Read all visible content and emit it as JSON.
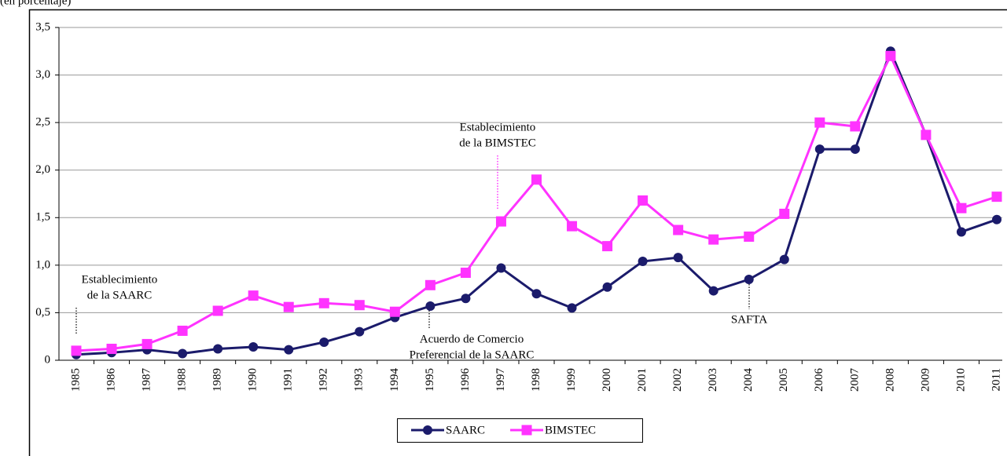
{
  "chart_data": {
    "type": "line",
    "subtitle": "(en porcentaje)",
    "categories": [
      "1985",
      "1986",
      "1987",
      "1988",
      "1989",
      "1990",
      "1991",
      "1992",
      "1993",
      "1994",
      "1995",
      "1996",
      "1997",
      "1998",
      "1999",
      "2000",
      "2001",
      "2002",
      "2003",
      "2004",
      "2005",
      "2006",
      "2007",
      "2008",
      "2009",
      "2010",
      "2011"
    ],
    "series": [
      {
        "name": "SAARC",
        "color": "#1b1b6b",
        "marker": "circle",
        "values": [
          0.06,
          0.08,
          0.11,
          0.07,
          0.12,
          0.14,
          0.11,
          0.19,
          0.3,
          0.45,
          0.57,
          0.65,
          0.97,
          0.7,
          0.55,
          0.77,
          1.04,
          1.08,
          0.73,
          0.85,
          1.06,
          2.22,
          2.22,
          3.25,
          2.37,
          1.35,
          1.48
        ]
      },
      {
        "name": "BIMSTEC",
        "color": "#ff33ff",
        "marker": "square",
        "values": [
          0.1,
          0.12,
          0.17,
          0.31,
          0.52,
          0.68,
          0.56,
          0.6,
          0.58,
          0.51,
          0.79,
          0.92,
          1.46,
          1.9,
          1.41,
          1.2,
          1.68,
          1.37,
          1.27,
          1.3,
          1.54,
          2.5,
          2.46,
          3.2,
          2.37,
          1.6,
          1.72
        ]
      }
    ],
    "ylim": [
      0,
      3.5
    ],
    "yticks": [
      0,
      {
        "value": 0.5,
        "label": "0,5"
      },
      {
        "value": 1,
        "label": "1,0"
      },
      {
        "value": 1.5,
        "label": "1,5"
      },
      {
        "value": 2,
        "label": "2,0"
      },
      {
        "value": 2.5,
        "label": "2,5"
      },
      {
        "value": 3,
        "label": "3,0"
      },
      {
        "value": 3.5,
        "label": "3,5"
      }
    ],
    "grid": true,
    "legend": "bottom",
    "annotations": [
      {
        "lines": [
          "Establecimiento",
          "de la SAARC"
        ],
        "color": "#2b2bd6"
      },
      {
        "lines": [
          "Establecimiento",
          "de la BIMSTEC"
        ],
        "color": "#ff00ff"
      },
      {
        "lines": [
          "Acuerdo de Comercio",
          "Preferencial de la SAARC"
        ],
        "color": "#2b2bd6"
      },
      {
        "lines": [
          "SAFTA"
        ],
        "color": "#2b2bd6"
      }
    ]
  }
}
